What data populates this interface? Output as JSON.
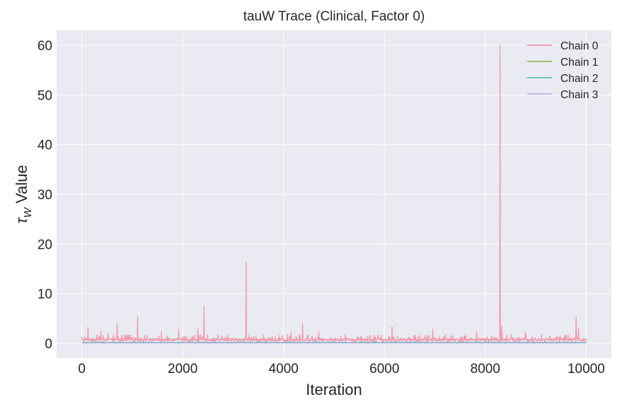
{
  "chart_data": {
    "type": "line",
    "title": "tauW Trace (Clinical, Factor 0)",
    "xlabel": "Iteration",
    "ylabel_symbol": "τ",
    "ylabel_subscript": "W",
    "ylabel_suffix": " Value",
    "xlim": [
      -500,
      10500
    ],
    "ylim": [
      -3,
      63
    ],
    "xticks": [
      0,
      2000,
      4000,
      6000,
      8000,
      10000
    ],
    "yticks": [
      0,
      10,
      20,
      30,
      40,
      50,
      60
    ],
    "grid": true,
    "legend_position": "top-right",
    "x_range": [
      0,
      10000
    ],
    "series": [
      {
        "name": "Chain 0",
        "color": "#f08ca0",
        "baseline": 0.6,
        "noise_amplitude": 0.9,
        "spikes": [
          {
            "x": 120,
            "y": 3.2
          },
          {
            "x": 380,
            "y": 2.4
          },
          {
            "x": 520,
            "y": 2.0
          },
          {
            "x": 700,
            "y": 4.1
          },
          {
            "x": 1110,
            "y": 5.4
          },
          {
            "x": 1580,
            "y": 2.3
          },
          {
            "x": 1920,
            "y": 2.7
          },
          {
            "x": 2300,
            "y": 3.0
          },
          {
            "x": 2420,
            "y": 7.5
          },
          {
            "x": 3260,
            "y": 16.4
          },
          {
            "x": 4150,
            "y": 2.2
          },
          {
            "x": 4380,
            "y": 3.9
          },
          {
            "x": 4700,
            "y": 2.3
          },
          {
            "x": 6150,
            "y": 3.3
          },
          {
            "x": 6960,
            "y": 2.8
          },
          {
            "x": 7830,
            "y": 2.4
          },
          {
            "x": 8290,
            "y": 60.0
          },
          {
            "x": 8330,
            "y": 3.5
          },
          {
            "x": 8790,
            "y": 2.2
          },
          {
            "x": 9800,
            "y": 5.3
          },
          {
            "x": 9850,
            "y": 2.9
          }
        ]
      },
      {
        "name": "Chain 1",
        "color": "#8db04a",
        "baseline": 0.1,
        "noise_amplitude": 0.15,
        "spikes": []
      },
      {
        "name": "Chain 2",
        "color": "#4cb8a8",
        "baseline": 0.1,
        "noise_amplitude": 0.15,
        "spikes": []
      },
      {
        "name": "Chain 3",
        "color": "#a8a8f0",
        "baseline": 0.1,
        "noise_amplitude": 0.12,
        "spikes": []
      }
    ]
  }
}
